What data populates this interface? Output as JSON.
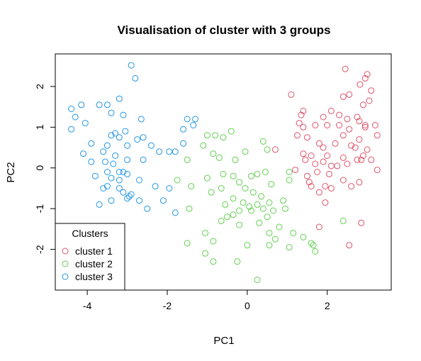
{
  "chart_data": {
    "type": "scatter",
    "title": "Visualisation of cluster with 3 groups",
    "xlabel": "PC1",
    "ylabel": "PC2",
    "xlim": [
      -4.8,
      3.6
    ],
    "ylim": [
      -3.0,
      2.8
    ],
    "x_ticks": [
      -4,
      -2,
      0,
      2
    ],
    "y_ticks": [
      -2,
      -1,
      0,
      1,
      2
    ],
    "grid": false,
    "legend": {
      "title": "Clusters",
      "position": "bottom-left",
      "entries": [
        "cluster 1",
        "cluster 2",
        "cluster 3"
      ]
    },
    "series": [
      {
        "name": "cluster 1",
        "color": "#DF536B",
        "points": [
          [
            2.45,
            2.43
          ],
          [
            2.82,
            2.05
          ],
          [
            3.0,
            2.3
          ],
          [
            2.95,
            2.2
          ],
          [
            3.1,
            1.9
          ],
          [
            2.55,
            1.8
          ],
          [
            2.4,
            1.75
          ],
          [
            3.05,
            1.65
          ],
          [
            2.9,
            1.55
          ],
          [
            1.1,
            1.8
          ],
          [
            1.4,
            1.4
          ],
          [
            1.35,
            1.3
          ],
          [
            1.9,
            1.25
          ],
          [
            2.1,
            1.4
          ],
          [
            2.3,
            1.3
          ],
          [
            2.5,
            1.2
          ],
          [
            2.75,
            1.25
          ],
          [
            2.8,
            1.15
          ],
          [
            2.95,
            1.0
          ],
          [
            1.7,
            1.05
          ],
          [
            2.0,
            1.05
          ],
          [
            2.3,
            1.05
          ],
          [
            2.55,
            0.95
          ],
          [
            2.95,
            1.05
          ],
          [
            3.2,
            1.05
          ],
          [
            3.25,
            0.8
          ],
          [
            1.3,
            1.1
          ],
          [
            1.25,
            0.8
          ],
          [
            1.4,
            1.0
          ],
          [
            2.4,
            0.8
          ],
          [
            1.5,
            0.75
          ],
          [
            1.8,
            0.6
          ],
          [
            1.9,
            0.5
          ],
          [
            2.0,
            0.3
          ],
          [
            2.2,
            0.6
          ],
          [
            2.6,
            0.55
          ],
          [
            2.8,
            0.7
          ],
          [
            2.7,
            0.5
          ],
          [
            3.0,
            0.45
          ],
          [
            2.9,
            0.3
          ],
          [
            0.7,
            0.45
          ],
          [
            1.4,
            0.35
          ],
          [
            1.45,
            0.2
          ],
          [
            1.6,
            0.3
          ],
          [
            1.7,
            0.1
          ],
          [
            1.9,
            0.15
          ],
          [
            2.1,
            0.05
          ],
          [
            2.5,
            0.1
          ],
          [
            2.75,
            0.2
          ],
          [
            2.85,
            0.2
          ],
          [
            3.1,
            0.2
          ],
          [
            1.2,
            -0.05
          ],
          [
            1.5,
            -0.2
          ],
          [
            1.75,
            -0.1
          ],
          [
            2.05,
            -0.15
          ],
          [
            2.25,
            0.05
          ],
          [
            2.4,
            0.25
          ],
          [
            3.25,
            -0.05
          ],
          [
            1.55,
            -0.35
          ],
          [
            1.6,
            -0.45
          ],
          [
            1.8,
            -0.6
          ],
          [
            1.95,
            -0.45
          ],
          [
            2.1,
            -0.5
          ],
          [
            2.4,
            -0.3
          ],
          [
            2.6,
            -0.45
          ],
          [
            2.8,
            -0.35
          ],
          [
            1.95,
            -0.85
          ],
          [
            2.85,
            -1.35
          ],
          [
            1.8,
            -1.45
          ],
          [
            2.55,
            -1.9
          ]
        ]
      },
      {
        "name": "cluster 2",
        "color": "#61D04F",
        "points": [
          [
            -1.0,
            0.8
          ],
          [
            -0.8,
            0.8
          ],
          [
            -0.6,
            0.75
          ],
          [
            -0.4,
            0.9
          ],
          [
            0.4,
            0.65
          ],
          [
            -1.1,
            0.55
          ],
          [
            -0.85,
            0.35
          ],
          [
            0.5,
            0.45
          ],
          [
            -0.05,
            0.4
          ],
          [
            -1.5,
            0.2
          ],
          [
            -0.7,
            0.25
          ],
          [
            -0.3,
            0.2
          ],
          [
            -1.75,
            -0.3
          ],
          [
            -1.4,
            -0.45
          ],
          [
            -1.0,
            -0.25
          ],
          [
            -0.6,
            -0.15
          ],
          [
            -0.35,
            -0.2
          ],
          [
            0.1,
            -0.2
          ],
          [
            0.25,
            -0.15
          ],
          [
            0.45,
            -0.1
          ],
          [
            1.05,
            -0.1
          ],
          [
            -1.45,
            -1.0
          ],
          [
            -0.9,
            -0.6
          ],
          [
            -0.65,
            -0.5
          ],
          [
            -0.2,
            -0.35
          ],
          [
            -0.05,
            -0.5
          ],
          [
            0.15,
            -0.6
          ],
          [
            0.35,
            -0.7
          ],
          [
            0.6,
            -0.4
          ],
          [
            1.05,
            -0.3
          ],
          [
            -0.55,
            -0.9
          ],
          [
            -0.35,
            -0.75
          ],
          [
            -0.1,
            -0.85
          ],
          [
            0.05,
            -0.95
          ],
          [
            0.25,
            -0.9
          ],
          [
            0.55,
            -0.85
          ],
          [
            0.9,
            -0.8
          ],
          [
            -0.65,
            -1.3
          ],
          [
            -0.5,
            -1.2
          ],
          [
            -0.35,
            -1.15
          ],
          [
            -0.2,
            -1.05
          ],
          [
            0.1,
            -1.05
          ],
          [
            0.4,
            -1.0
          ],
          [
            0.65,
            -1.05
          ],
          [
            0.95,
            -1.0
          ],
          [
            -0.2,
            -1.4
          ],
          [
            0.3,
            -1.35
          ],
          [
            0.5,
            -1.2
          ],
          [
            0.8,
            -1.45
          ],
          [
            1.15,
            -1.6
          ],
          [
            -1.05,
            -1.6
          ],
          [
            0.55,
            -1.6
          ],
          [
            -0.85,
            -1.8
          ],
          [
            0.7,
            -1.75
          ],
          [
            -1.5,
            -1.85
          ],
          [
            0.0,
            -1.9
          ],
          [
            0.55,
            -1.9
          ],
          [
            1.05,
            -1.95
          ],
          [
            1.6,
            -1.85
          ],
          [
            1.65,
            -1.9
          ],
          [
            1.7,
            -2.05
          ],
          [
            1.4,
            -1.7
          ],
          [
            2.4,
            -1.3
          ],
          [
            -0.25,
            -2.3
          ],
          [
            -1.05,
            -2.1
          ],
          [
            -0.85,
            -2.3
          ],
          [
            0.25,
            -2.75
          ]
        ]
      },
      {
        "name": "cluster 3",
        "color": "#2297E6",
        "points": [
          [
            -2.9,
            2.52
          ],
          [
            -2.8,
            2.2
          ],
          [
            -3.5,
            1.55
          ],
          [
            -3.7,
            1.55
          ],
          [
            -3.4,
            1.35
          ],
          [
            -4.15,
            1.55
          ],
          [
            -3.2,
            1.7
          ],
          [
            -4.4,
            1.45
          ],
          [
            -4.3,
            1.25
          ],
          [
            -3.1,
            1.3
          ],
          [
            -4.05,
            1.1
          ],
          [
            -4.4,
            0.95
          ],
          [
            -2.65,
            1.2
          ],
          [
            -3.3,
            0.85
          ],
          [
            -3.4,
            0.8
          ],
          [
            -3.05,
            0.9
          ],
          [
            -3.2,
            0.75
          ],
          [
            -2.75,
            0.7
          ],
          [
            -2.6,
            0.75
          ],
          [
            -3.9,
            0.6
          ],
          [
            -3.5,
            0.55
          ],
          [
            -3.0,
            0.55
          ],
          [
            -2.4,
            0.55
          ],
          [
            -2.2,
            0.4
          ],
          [
            -1.95,
            0.4
          ],
          [
            -1.6,
            0.6
          ],
          [
            -1.5,
            1.2
          ],
          [
            -1.3,
            1.2
          ],
          [
            -1.35,
            1.05
          ],
          [
            -1.6,
            0.95
          ],
          [
            -1.8,
            0.4
          ],
          [
            -4.1,
            0.35
          ],
          [
            -3.6,
            0.4
          ],
          [
            -3.3,
            0.3
          ],
          [
            -3.55,
            0.15
          ],
          [
            -3.35,
            0.1
          ],
          [
            -3.9,
            0.15
          ],
          [
            -3.0,
            0.2
          ],
          [
            -2.6,
            0.2
          ],
          [
            -3.2,
            -0.1
          ],
          [
            -3.1,
            -0.1
          ],
          [
            -3.5,
            -0.1
          ],
          [
            -3.4,
            -0.25
          ],
          [
            -3.8,
            -0.2
          ],
          [
            -3.2,
            -0.3
          ],
          [
            -3.0,
            -0.15
          ],
          [
            -2.7,
            -0.3
          ],
          [
            -3.5,
            -0.45
          ],
          [
            -3.6,
            -0.5
          ],
          [
            -3.2,
            -0.5
          ],
          [
            -2.3,
            -0.45
          ],
          [
            -1.95,
            -0.5
          ],
          [
            -3.1,
            -0.6
          ],
          [
            -2.9,
            -0.65
          ],
          [
            -2.95,
            -0.7
          ],
          [
            -3.0,
            -0.75
          ],
          [
            -3.4,
            -0.8
          ],
          [
            -2.7,
            -0.8
          ],
          [
            -3.7,
            -0.9
          ],
          [
            -2.5,
            -1.0
          ],
          [
            -2.1,
            -0.8
          ],
          [
            -1.8,
            -1.1
          ]
        ]
      }
    ]
  }
}
